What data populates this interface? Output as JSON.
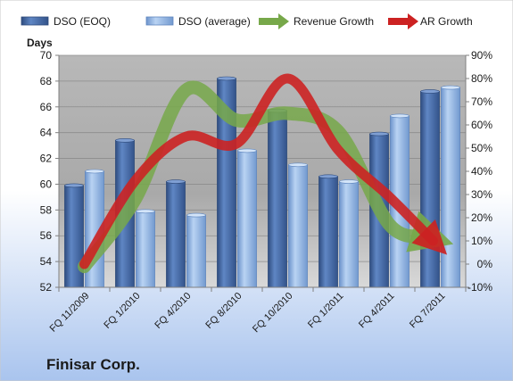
{
  "footer": {
    "company": "Finisar Corp."
  },
  "colors": {
    "dso_eoq": "#4a6faa",
    "dso_average": "#8fb4e3",
    "revenue_growth": "#77a84a",
    "ar_growth": "#cc2222",
    "plot_bg": "#bdbdbd",
    "page_bg_top": "#ffffff",
    "page_bg_bottom": "#a9c4ee"
  },
  "chart_data": {
    "type": "bar",
    "title": "",
    "categories": [
      "FQ 11/2009",
      "FQ 1/2010",
      "FQ 4/2010",
      "FQ 8/2010",
      "FQ 10/2010",
      "FQ 1/2011",
      "FQ 4/2011",
      "FQ 7/2011"
    ],
    "series": [
      {
        "name": "DSO (EOQ)",
        "kind": "bar",
        "axis": "left",
        "values": [
          59.9,
          63.4,
          60.2,
          68.2,
          65.7,
          60.6,
          63.9,
          67.2
        ]
      },
      {
        "name": "DSO (average)",
        "kind": "bar",
        "axis": "left",
        "values": [
          61.0,
          57.9,
          57.6,
          62.6,
          61.5,
          60.2,
          65.3,
          67.5
        ]
      },
      {
        "name": "Revenue Growth",
        "kind": "arrow",
        "axis": "right",
        "values": [
          -1,
          28,
          75,
          62,
          65,
          57,
          17,
          12
        ]
      },
      {
        "name": "AR Growth",
        "kind": "arrow",
        "axis": "right",
        "values": [
          0,
          36,
          55,
          52,
          80,
          49,
          29,
          10
        ]
      }
    ],
    "y_left": {
      "label": "Days",
      "min": 52,
      "max": 70,
      "ticks": [
        52,
        54,
        56,
        58,
        60,
        62,
        64,
        66,
        68,
        70
      ]
    },
    "y_right": {
      "label": "",
      "min": -10,
      "max": 90,
      "ticks": [
        "-10%",
        "0%",
        "10%",
        "20%",
        "30%",
        "40%",
        "50%",
        "60%",
        "70%",
        "80%",
        "90%"
      ]
    },
    "legend": {
      "position": "top",
      "entries": [
        "DSO (EOQ)",
        "DSO (average)",
        "Revenue Growth",
        "AR Growth"
      ]
    },
    "grid": true
  }
}
